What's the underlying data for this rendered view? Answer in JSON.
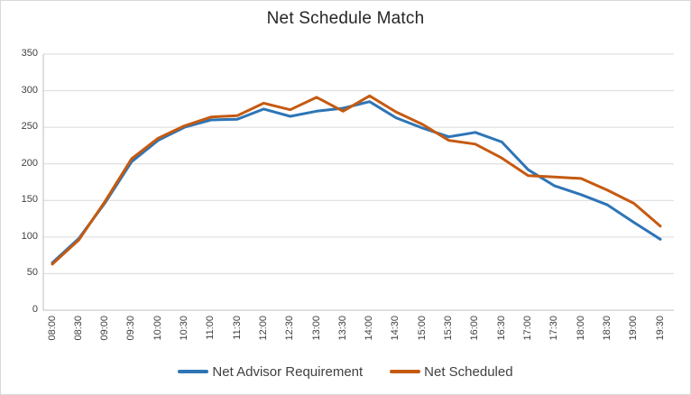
{
  "window": {
    "background": "#FFFFFF",
    "border_color": "#D9D9D9"
  },
  "chart_data": {
    "type": "line",
    "title": "Net Schedule Match",
    "categories": [
      "08:00",
      "08:30",
      "09:00",
      "09:30",
      "10:00",
      "10:30",
      "11:00",
      "11:30",
      "12:00",
      "12:30",
      "13:00",
      "13:30",
      "14:00",
      "14:30",
      "15:00",
      "15:30",
      "16:00",
      "16:30",
      "17:00",
      "17:30",
      "18:00",
      "18:30",
      "19:00",
      "19:30"
    ],
    "series": [
      {
        "name": "Net Advisor Requirement",
        "color": "#2E75B6",
        "values": [
          65,
          98,
          147,
          203,
          232,
          250,
          260,
          261,
          275,
          265,
          272,
          276,
          285,
          263,
          249,
          237,
          243,
          230,
          192,
          170,
          158,
          144,
          120,
          97
        ]
      },
      {
        "name": "Net Scheduled",
        "color": "#C55A11",
        "values": [
          63,
          96,
          149,
          207,
          235,
          252,
          264,
          266,
          283,
          274,
          291,
          272,
          293,
          271,
          254,
          232,
          227,
          208,
          184,
          182,
          180,
          164,
          146,
          115
        ]
      }
    ],
    "xlabel": "",
    "ylabel": "",
    "ylim": [
      0,
      350
    ],
    "yticks": [
      0,
      50,
      100,
      150,
      200,
      250,
      300,
      350
    ],
    "grid": true,
    "legend_position": "bottom",
    "x_tick_rotation": -90,
    "styles": {
      "gridline_color": "#D9D9D9",
      "axis_line_color": "#BFBFBF",
      "tick_label_color": "#404040",
      "title_color": "#262626",
      "legend_text_color": "#404040",
      "line_width": 3
    }
  }
}
